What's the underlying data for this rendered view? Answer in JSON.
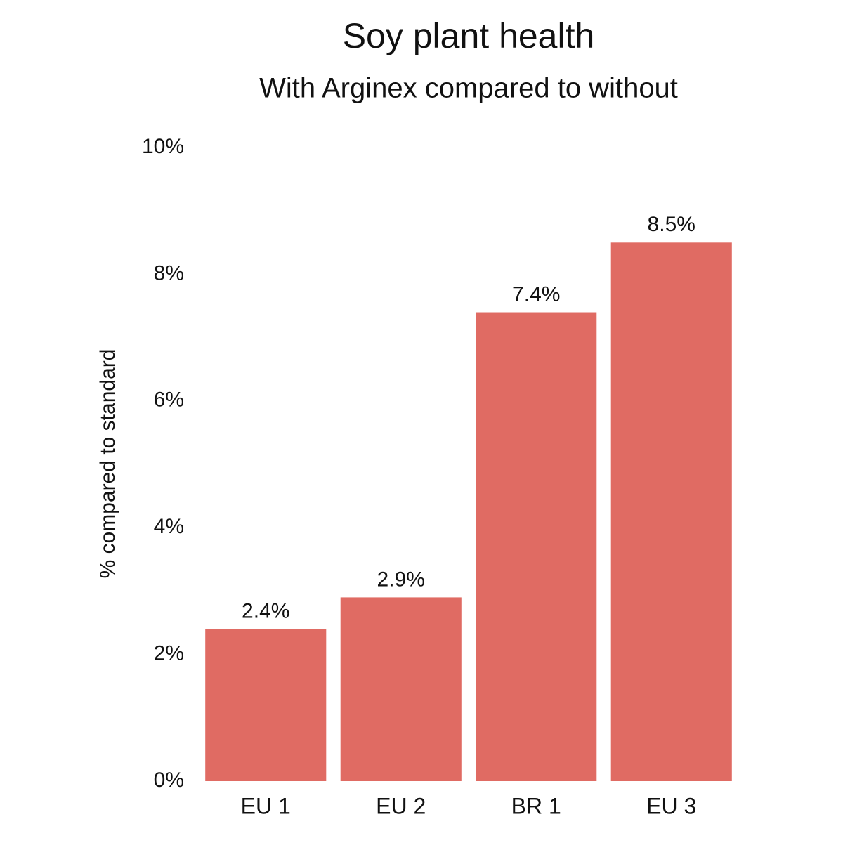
{
  "chart_data": {
    "type": "bar",
    "title": "Soy plant health",
    "subtitle": "With Arginex compared to without",
    "y_label": "% compared to standard",
    "categories": [
      "EU 1",
      "EU 2",
      "BR 1",
      "EU 3"
    ],
    "values": [
      2.4,
      2.9,
      7.4,
      8.5
    ],
    "value_labels": [
      "2.4%",
      "2.9%",
      "7.4%",
      "8.5%"
    ],
    "color": "#e06b63",
    "ylim": [
      0,
      10
    ],
    "yticks": [
      {
        "value": 0,
        "label": "0%"
      },
      {
        "value": 2,
        "label": "2%"
      },
      {
        "value": 4,
        "label": "4%"
      },
      {
        "value": 6,
        "label": "6%"
      },
      {
        "value": 8,
        "label": "8%"
      },
      {
        "value": 10,
        "label": "10%"
      }
    ],
    "grid": false
  }
}
